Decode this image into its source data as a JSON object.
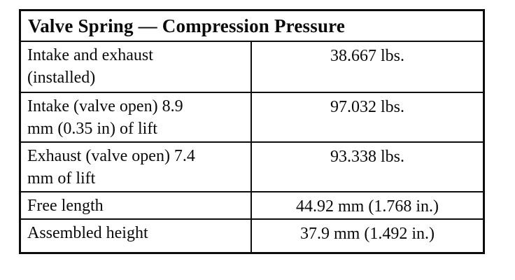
{
  "table": {
    "title": "Valve Spring — Compression Pressure",
    "rows": [
      {
        "label": "Intake and exhaust\n(installed)",
        "value": "38.667 lbs."
      },
      {
        "label": "Intake (valve open) 8.9\nmm (0.35 in) of lift",
        "value": "97.032 lbs."
      },
      {
        "label": "Exhaust (valve open) 7.4\nmm of lift",
        "value": "93.338 lbs."
      },
      {
        "label": "Free length",
        "value": "44.92 mm (1.768 in.)"
      },
      {
        "label": "Assembled height",
        "value": "37.9 mm (1.492 in.)"
      }
    ]
  }
}
